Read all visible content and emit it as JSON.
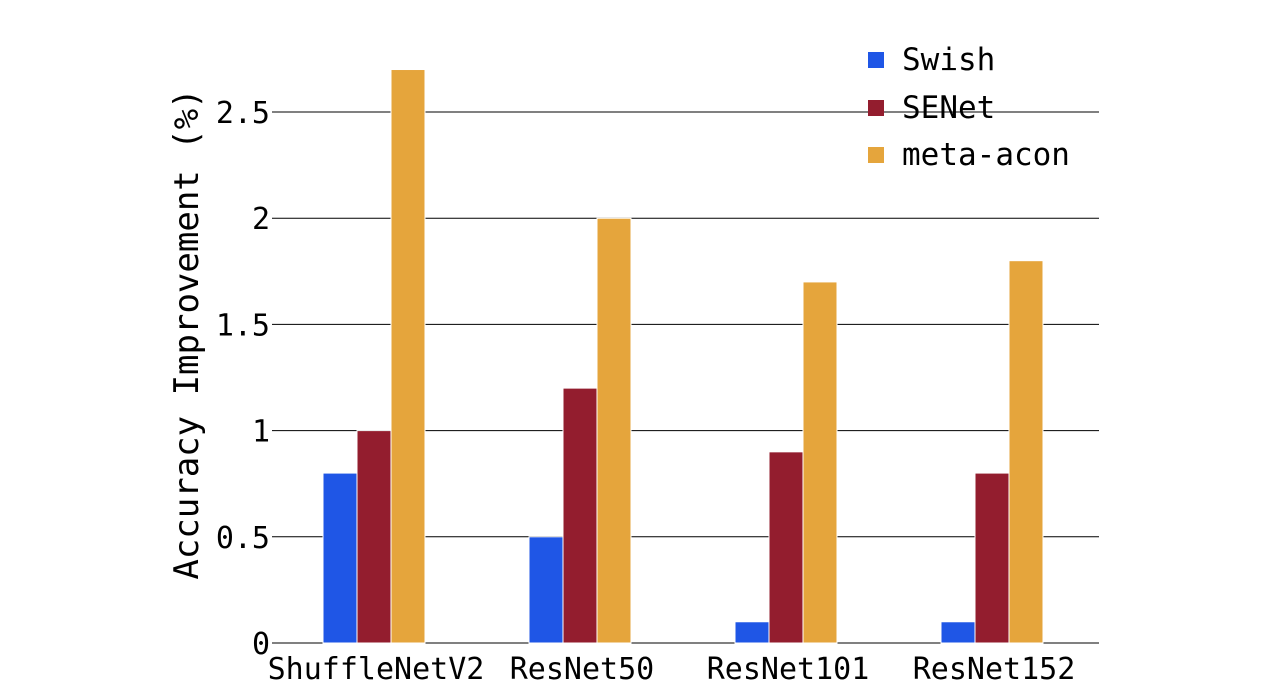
{
  "chart_data": {
    "type": "bar",
    "categories": [
      "ShuffleNetV2",
      "ResNet50",
      "ResNet101",
      "ResNet152"
    ],
    "series": [
      {
        "name": "Swish",
        "values": [
          0.8,
          0.5,
          0.1,
          0.1
        ],
        "color": "#1f56e6"
      },
      {
        "name": "SENet",
        "values": [
          1.0,
          1.2,
          0.9,
          0.8
        ],
        "color": "#931d2e"
      },
      {
        "name": "meta-acon",
        "values": [
          2.7,
          2.0,
          1.7,
          1.8
        ],
        "color": "#e5a53c"
      }
    ],
    "title": "",
    "xlabel": "",
    "ylabel": "Accuracy Improvement (%)",
    "ylim": [
      0,
      2.8
    ],
    "yticks": [
      {
        "value": 0,
        "label": "0"
      },
      {
        "value": 0.5,
        "label": "0.5"
      },
      {
        "value": 1,
        "label": "1"
      },
      {
        "value": 1.5,
        "label": "1.5"
      },
      {
        "value": 2,
        "label": "2"
      },
      {
        "value": 2.5,
        "label": "2.5"
      }
    ],
    "grid": true,
    "legend": "top-right"
  }
}
